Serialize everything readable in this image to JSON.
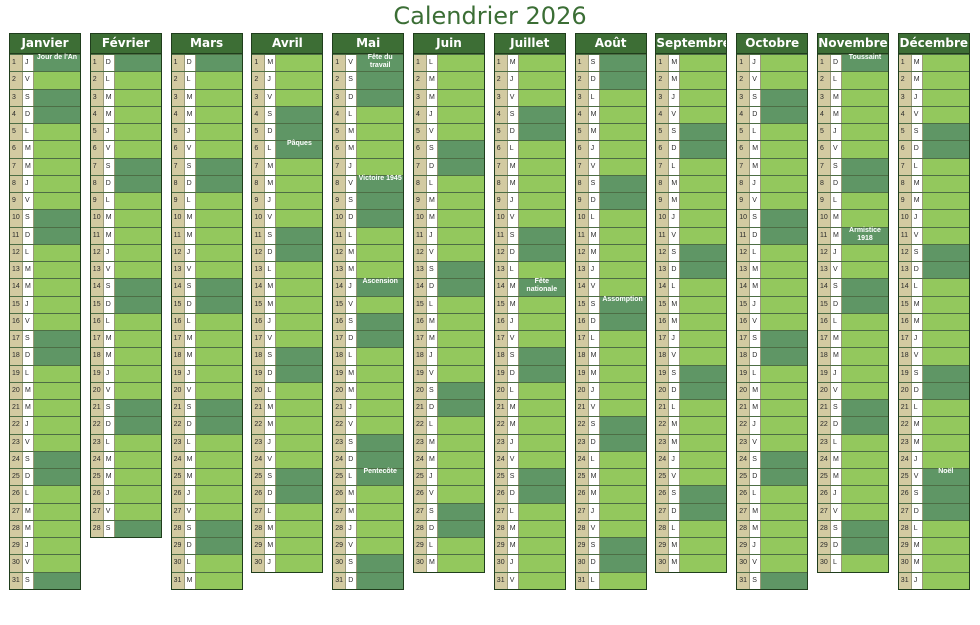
{
  "title": "Calendrier 2026",
  "colors": {
    "header": "#3d6e35",
    "weekday_cell": "#93c85d",
    "weekend_cell": "#5f9665",
    "day_number_bg": "#d2caa1",
    "title_text": "#3b6e35"
  },
  "months": [
    {
      "name": "Janvier",
      "first_weekday": 3,
      "days": 31,
      "holidays": [
        {
          "day": 1,
          "label": "Jour de l'An"
        }
      ]
    },
    {
      "name": "Février",
      "first_weekday": 6,
      "days": 28,
      "holidays": []
    },
    {
      "name": "Mars",
      "first_weekday": 6,
      "days": 31,
      "holidays": []
    },
    {
      "name": "Avril",
      "first_weekday": 2,
      "days": 30,
      "holidays": [
        {
          "day": 6,
          "label": "Pâques"
        }
      ]
    },
    {
      "name": "Mai",
      "first_weekday": 4,
      "days": 31,
      "holidays": [
        {
          "day": 1,
          "label": "Fête du travail"
        },
        {
          "day": 8,
          "label": "Victoire 1945"
        },
        {
          "day": 14,
          "label": "Ascension"
        },
        {
          "day": 25,
          "label": "Pentecôte"
        }
      ]
    },
    {
      "name": "Juin",
      "first_weekday": 0,
      "days": 30,
      "holidays": []
    },
    {
      "name": "Juillet",
      "first_weekday": 2,
      "days": 31,
      "holidays": [
        {
          "day": 14,
          "label": "Fête nationale"
        }
      ]
    },
    {
      "name": "Août",
      "first_weekday": 5,
      "days": 31,
      "holidays": [
        {
          "day": 15,
          "label": "Assomption"
        }
      ]
    },
    {
      "name": "Septembre",
      "first_weekday": 1,
      "days": 30,
      "holidays": []
    },
    {
      "name": "Octobre",
      "first_weekday": 3,
      "days": 31,
      "holidays": []
    },
    {
      "name": "Novembre",
      "first_weekday": 6,
      "days": 30,
      "holidays": [
        {
          "day": 1,
          "label": "Toussaint"
        },
        {
          "day": 11,
          "label": "Armistice 1918"
        }
      ]
    },
    {
      "name": "Décembre",
      "first_weekday": 1,
      "days": 31,
      "holidays": [
        {
          "day": 25,
          "label": "Noël"
        }
      ]
    }
  ],
  "weekday_letters": [
    "L",
    "M",
    "M",
    "J",
    "V",
    "S",
    "D"
  ]
}
